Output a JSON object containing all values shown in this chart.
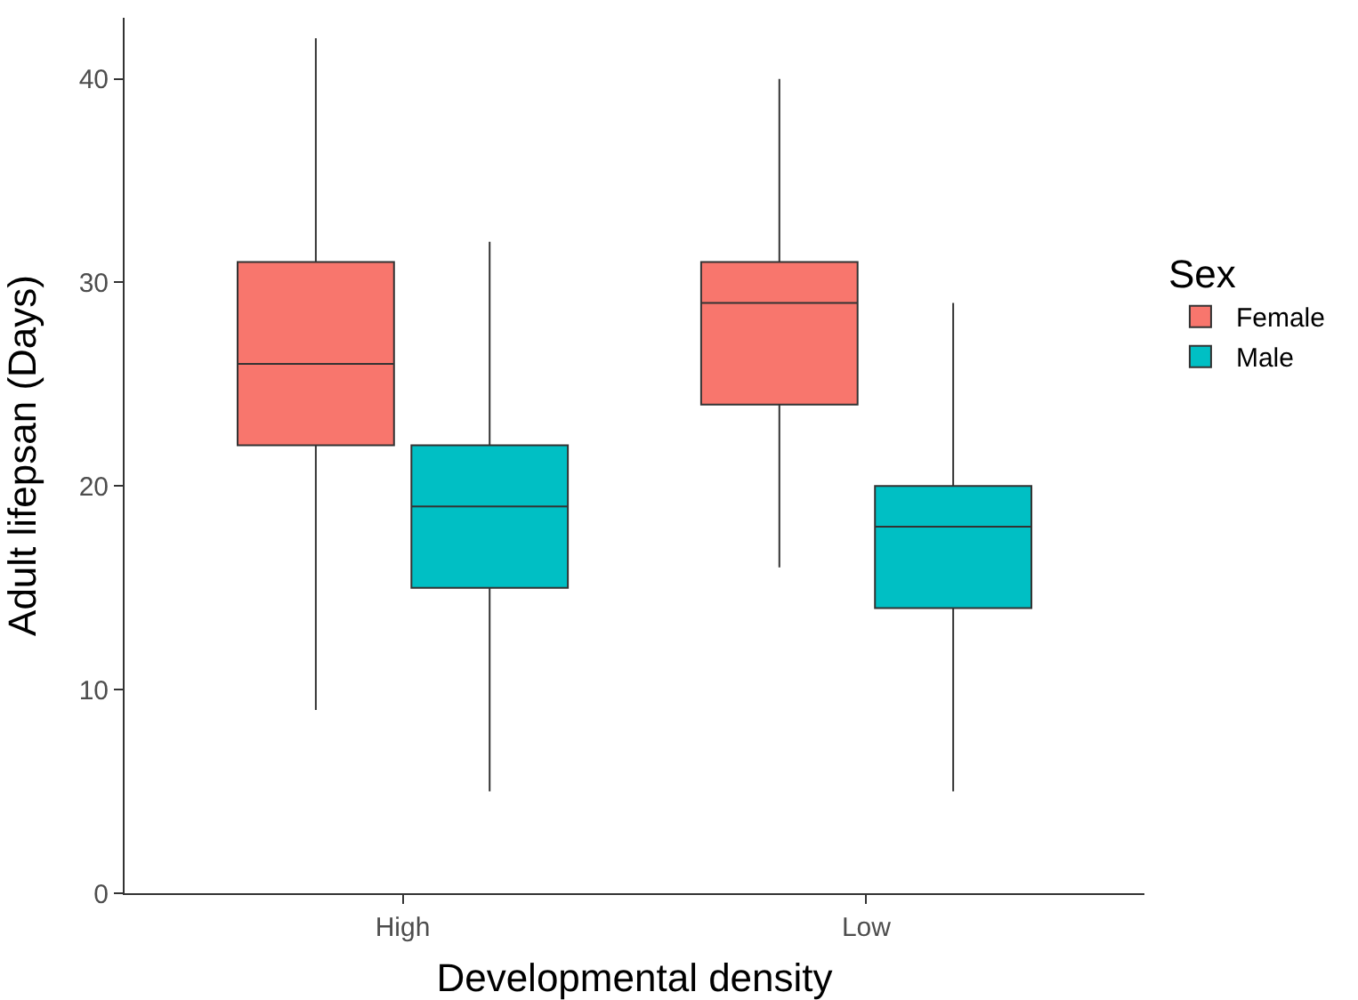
{
  "chart_data": {
    "type": "box",
    "xlabel": "Developmental density",
    "ylabel": "Adult lifepsan (Days)",
    "legend_title": "Sex",
    "legend": "right",
    "grid": false,
    "categories": [
      "High",
      "Low"
    ],
    "ylim": [
      0,
      43
    ],
    "yticks": [
      0,
      10,
      20,
      30,
      40
    ],
    "series": [
      {
        "name": "Female",
        "color": "#f8766d",
        "boxes": [
          {
            "low": 9,
            "q1": 22,
            "median": 26,
            "q3": 31,
            "high": 42
          },
          {
            "low": 16,
            "q1": 24,
            "median": 29,
            "q3": 31,
            "high": 40
          }
        ]
      },
      {
        "name": "Male",
        "color": "#00bfc4",
        "boxes": [
          {
            "low": 5,
            "q1": 15,
            "median": 19,
            "q3": 22,
            "high": 32
          },
          {
            "low": 5,
            "q1": 14,
            "median": 18,
            "q3": 20,
            "high": 29
          }
        ]
      }
    ]
  }
}
